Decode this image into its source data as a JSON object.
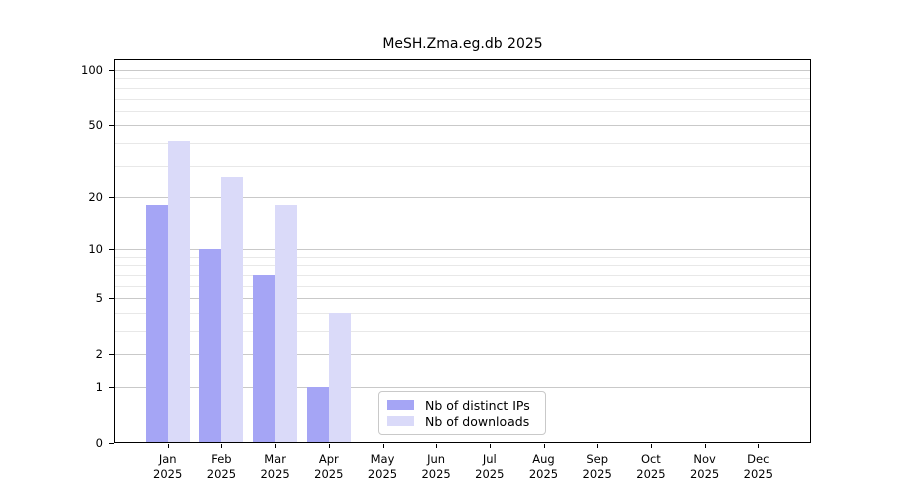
{
  "chart_data": {
    "type": "bar",
    "title": "MeSH.Zma.eg.db 2025",
    "categories": [
      "Jan 2025",
      "Feb 2025",
      "Mar 2025",
      "Apr 2025",
      "May 2025",
      "Jun 2025",
      "Jul 2025",
      "Aug 2025",
      "Sep 2025",
      "Oct 2025",
      "Nov 2025",
      "Dec 2025"
    ],
    "series": [
      {
        "name": "Nb of distinct IPs",
        "color": "#a5a5f5",
        "values": [
          18,
          10,
          7,
          1,
          0,
          0,
          0,
          0,
          0,
          0,
          0,
          0
        ]
      },
      {
        "name": "Nb of downloads",
        "color": "#dadaf9",
        "values": [
          41,
          26,
          18,
          4,
          0,
          0,
          0,
          0,
          0,
          0,
          0,
          0
        ]
      }
    ],
    "y_axis": {
      "scale": "log10(1+value)",
      "ticks": [
        0,
        1,
        2,
        5,
        10,
        20,
        50,
        100
      ],
      "tick_labels": [
        "0",
        "1",
        "2",
        "5",
        "10",
        "20",
        "50",
        "100"
      ],
      "minor_gridlines": [
        3,
        4,
        6,
        7,
        8,
        9,
        30,
        40,
        60,
        70,
        80,
        90
      ]
    },
    "legend": {
      "position": "lower center inside"
    },
    "grid": {
      "major_color": "#c9c9c9",
      "minor_color": "#e8e8e8"
    }
  }
}
